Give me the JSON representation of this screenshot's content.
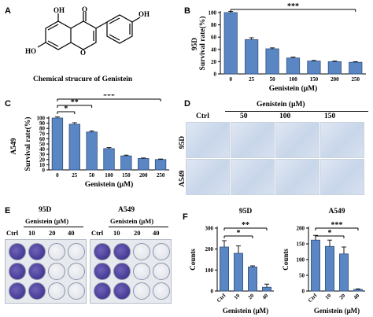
{
  "panels": {
    "a": {
      "letter": "A",
      "caption": "Chemical strucure of Genistein",
      "atoms": {
        "oh_top": "OH",
        "oh_right": "OH",
        "ho_left": "HO",
        "o_carbonyl": "O",
        "o_ring": "O"
      }
    },
    "b": {
      "letter": "B",
      "significance": "***"
    },
    "c": {
      "letter": "C",
      "significance": [
        "*",
        "**",
        "***"
      ]
    },
    "d": {
      "letter": "D",
      "header": "Genistein (μM)",
      "columns": [
        "Ctrl",
        "50",
        "100",
        "150"
      ],
      "rows": [
        "95D",
        "A549"
      ]
    },
    "e": {
      "letter": "E",
      "plates": [
        {
          "title": "95D",
          "header": "Genistein (μM)",
          "columns": [
            "Ctrl",
            "10",
            "20",
            "40"
          ]
        },
        {
          "title": "A549",
          "header": "Genistein (μM)",
          "columns": [
            "Ctrl",
            "10",
            "20",
            "40"
          ]
        }
      ]
    },
    "f": {
      "letter": "F"
    }
  },
  "colors": {
    "bar": "#5b86c4",
    "bar_edge": "#2f4f7f",
    "plate_stain": "#4c3f9a"
  },
  "chart_data": [
    {
      "id": "B",
      "type": "bar",
      "title": "95D",
      "xlabel": "Genistein (μM)",
      "ylabel": "Survival rate(%)",
      "categories": [
        "0",
        "25",
        "50",
        "100",
        "150",
        "200",
        "250"
      ],
      "values": [
        100,
        56,
        41,
        26,
        21,
        20,
        19
      ],
      "errors": [
        2,
        3,
        1.5,
        1.5,
        1,
        1,
        1
      ],
      "ylim": [
        0,
        100
      ],
      "yticks": [
        "0",
        "20",
        "40",
        "60",
        "80",
        "100"
      ],
      "significance": "***"
    },
    {
      "id": "C",
      "type": "bar",
      "title": "A549",
      "xlabel": "Genistein (μM)",
      "ylabel": "Survival rate(%)",
      "categories": [
        "0",
        "25",
        "50",
        "100",
        "150",
        "200",
        "250"
      ],
      "values": [
        100,
        88,
        73,
        41,
        27,
        22,
        20
      ],
      "errors": [
        2,
        3,
        2,
        2,
        1.5,
        1,
        1
      ],
      "ylim": [
        0,
        100
      ],
      "yticks": [
        "0",
        "10",
        "20",
        "30",
        "40",
        "50",
        "60",
        "70",
        "80",
        "90",
        "100"
      ],
      "significance": [
        "*",
        "**",
        "***"
      ]
    },
    {
      "id": "F1",
      "type": "bar",
      "title": "95D",
      "xlabel": "Genistein (μM)",
      "ylabel": "Counts",
      "categories": [
        "Ctrl",
        "10",
        "20",
        "40"
      ],
      "values": [
        210,
        180,
        115,
        18
      ],
      "errors": [
        30,
        35,
        5,
        15
      ],
      "ylim": [
        0,
        300
      ],
      "yticks": [
        "0",
        "100",
        "200",
        "300"
      ],
      "significance": [
        "*",
        "**"
      ]
    },
    {
      "id": "F2",
      "type": "bar",
      "title": "A549",
      "xlabel": "Genistein (μM)",
      "ylabel": "Counts",
      "categories": [
        "Ctrl",
        "10",
        "20",
        "40"
      ],
      "values": [
        162,
        142,
        118,
        5
      ],
      "errors": [
        15,
        20,
        22,
        2
      ],
      "ylim": [
        0,
        200
      ],
      "yticks": [
        "0",
        "50",
        "100",
        "150",
        "200"
      ],
      "significance": [
        "*",
        "***"
      ]
    }
  ]
}
